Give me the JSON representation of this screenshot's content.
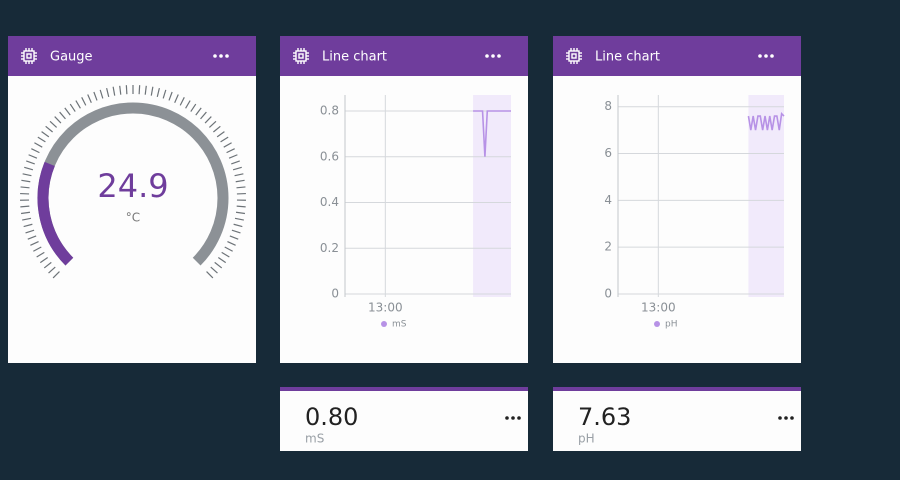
{
  "widgets": [
    {
      "type": "gauge",
      "title": "Gauge",
      "value": 24.9,
      "unit": "°C",
      "range": [
        0,
        100
      ],
      "color": "#6f3d9c",
      "track_color": "#8c9196"
    },
    {
      "type": "chart",
      "title": "Line chart",
      "chart_data": {
        "type": "line",
        "x": [
          817,
          818,
          819,
          820,
          821,
          822,
          823,
          826,
          829,
          833
        ],
        "series": [
          {
            "name": "mS",
            "color": "#b792e6",
            "values": [
              0.8,
              0.8,
              0.8,
              0.8,
              0.8,
              0.6,
              0.8,
              0.8,
              0.8,
              0.8
            ]
          }
        ],
        "xlim": [
          763,
          833
        ],
        "xticks": [
          {
            "value": 780,
            "label": "13:00"
          }
        ],
        "ylim": [
          0,
          0.87
        ],
        "yticks": [
          0,
          0.2,
          0.4,
          0.6,
          0.8
        ],
        "grid": true
      }
    },
    {
      "type": "chart",
      "title": "Line chart",
      "chart_data": {
        "type": "line",
        "x": [
          818,
          819,
          820,
          821,
          822,
          823,
          824,
          825,
          826,
          827,
          828,
          829,
          830,
          831,
          832,
          833
        ],
        "series": [
          {
            "name": "pH",
            "color": "#b792e6",
            "values": [
              7.6,
              7.0,
              7.6,
              7.0,
              7.6,
              7.6,
              7.0,
              7.6,
              7.0,
              7.6,
              7.0,
              7.6,
              7.6,
              7.0,
              7.7,
              7.6
            ]
          }
        ],
        "xlim": [
          763,
          833
        ],
        "xticks": [
          {
            "value": 780,
            "label": "13:00"
          }
        ],
        "ylim": [
          0,
          8.5
        ],
        "yticks": [
          0,
          2,
          4,
          6,
          8
        ],
        "grid": true
      }
    },
    {
      "type": "value",
      "value": "0.80",
      "unit": "mS"
    },
    {
      "type": "value",
      "value": "7.63",
      "unit": "pH"
    }
  ]
}
